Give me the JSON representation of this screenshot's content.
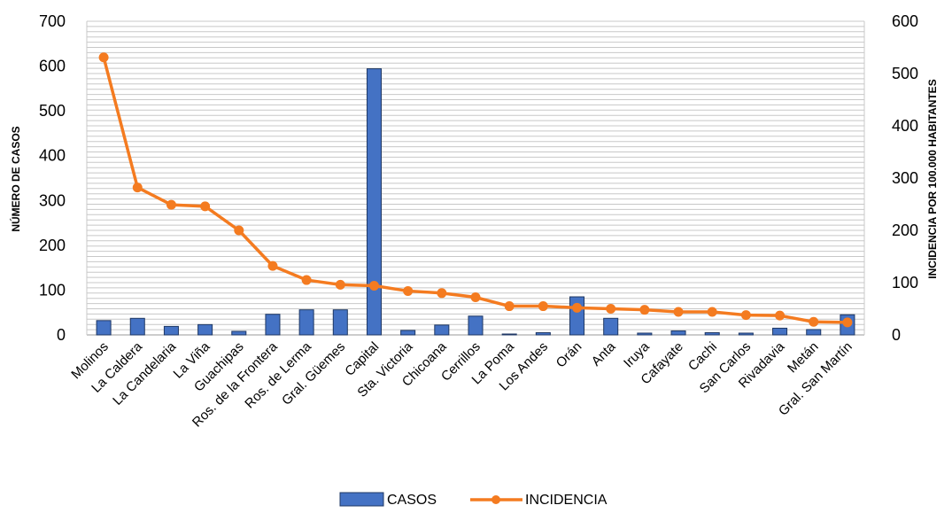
{
  "chart_data": {
    "type": "bar",
    "categories": [
      "Molinos",
      "La Caldera",
      "La Candelaria",
      "La Viña",
      "Guachipas",
      "Ros. de la Frontera",
      "Ros. de Lerma",
      "Gral. Güemes",
      "Capital",
      "Sta. Victoria",
      "Chicoana",
      "Cerrillos",
      "La Poma",
      "Los Andes",
      "Orán",
      "Anta",
      "Iruya",
      "Cafayate",
      "Cachi",
      "San Carlos",
      "Rivadavia",
      "Metán",
      "Gral. San Martín"
    ],
    "series": [
      {
        "name": "CASOS",
        "type": "bar",
        "axis": "left",
        "color": "#4472C4",
        "values": [
          32,
          37,
          19,
          23,
          8,
          46,
          56,
          56,
          594,
          10,
          22,
          42,
          2,
          5,
          85,
          37,
          4,
          9,
          5,
          4,
          15,
          12,
          45
        ]
      },
      {
        "name": "INCIDENCIA",
        "type": "line",
        "axis": "right",
        "color": "#F47B20",
        "values": [
          531,
          282,
          249,
          246,
          200,
          132,
          105,
          96,
          94,
          84,
          80,
          72,
          55,
          55,
          52,
          50,
          48,
          44,
          44,
          38,
          37,
          25,
          24
        ]
      }
    ],
    "ylabel": "NÚMERO DE CASOS",
    "y2label": "INCIDENCIA POR 100.000 HABITANTES",
    "ylim": [
      0,
      700
    ],
    "y2lim": [
      0,
      600
    ],
    "yticks": [
      "0",
      "100",
      "200",
      "300",
      "400",
      "500",
      "600",
      "700"
    ],
    "y2ticks": [
      "0",
      "100",
      "200",
      "300",
      "400",
      "500",
      "600"
    ],
    "grid": true,
    "legend_position": "bottom",
    "legend": [
      "CASOS",
      "INCIDENCIA"
    ]
  }
}
